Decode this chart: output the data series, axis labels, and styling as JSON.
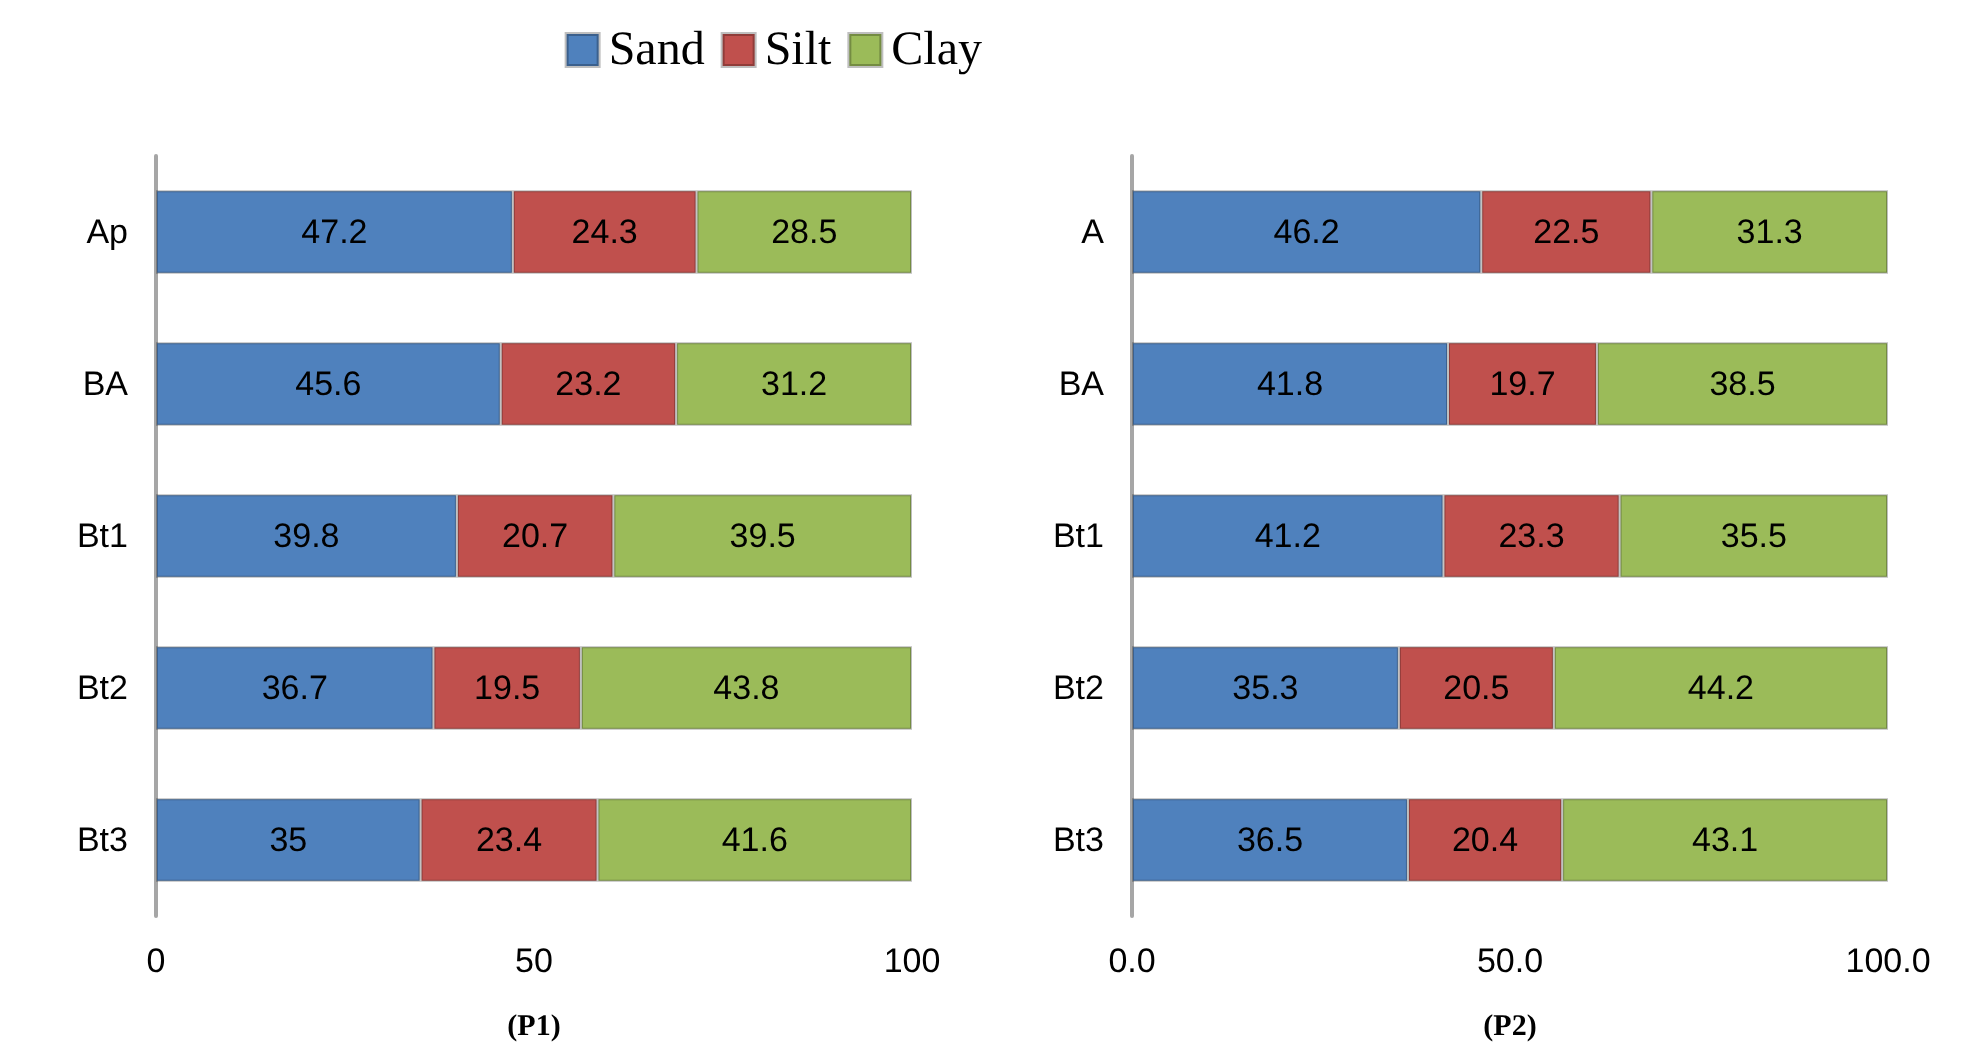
{
  "chart_data": [
    {
      "type": "bar",
      "orientation": "horizontal",
      "stacked": true,
      "xlabel": "(P1)",
      "categories": [
        "Ap",
        "BA",
        "Bt1",
        "Bt2",
        "Bt3"
      ],
      "xlim": [
        0,
        100
      ],
      "xticks": [
        0,
        50,
        100
      ],
      "grid": false,
      "legend": "top right",
      "data_labels": true,
      "series": [
        {
          "name": "Sand",
          "color": "#4f81bd",
          "values": [
            47.2,
            45.6,
            39.8,
            36.7,
            35
          ]
        },
        {
          "name": "Silt",
          "color": "#c0504d",
          "values": [
            24.3,
            23.2,
            20.7,
            19.5,
            23.4
          ]
        },
        {
          "name": "Clay",
          "color": "#9bbb59",
          "values": [
            28.5,
            31.2,
            39.5,
            43.8,
            41.6
          ]
        }
      ]
    },
    {
      "type": "bar",
      "orientation": "horizontal",
      "stacked": true,
      "xlabel": "(P2)",
      "categories": [
        "A",
        "BA",
        "Bt1",
        "Bt2",
        "Bt3"
      ],
      "xlim": [
        0,
        100
      ],
      "xticks": [
        {
          "value": 0,
          "label": "0.0"
        },
        {
          "value": 50,
          "label": "50.0"
        },
        {
          "value": 100,
          "label": "100.0"
        }
      ],
      "grid": false,
      "legend": false,
      "data_labels": true,
      "series": [
        {
          "color": "#4f81bd",
          "values": [
            46.2,
            41.8,
            41.2,
            35.3,
            36.5
          ]
        },
        {
          "color": "#c0504d",
          "values": [
            22.5,
            19.7,
            23.3,
            20.5,
            20.4
          ]
        },
        {
          "color": "#9bbb59",
          "values": [
            31.3,
            38.5,
            35.5,
            44.2,
            43.1
          ]
        }
      ]
    }
  ]
}
